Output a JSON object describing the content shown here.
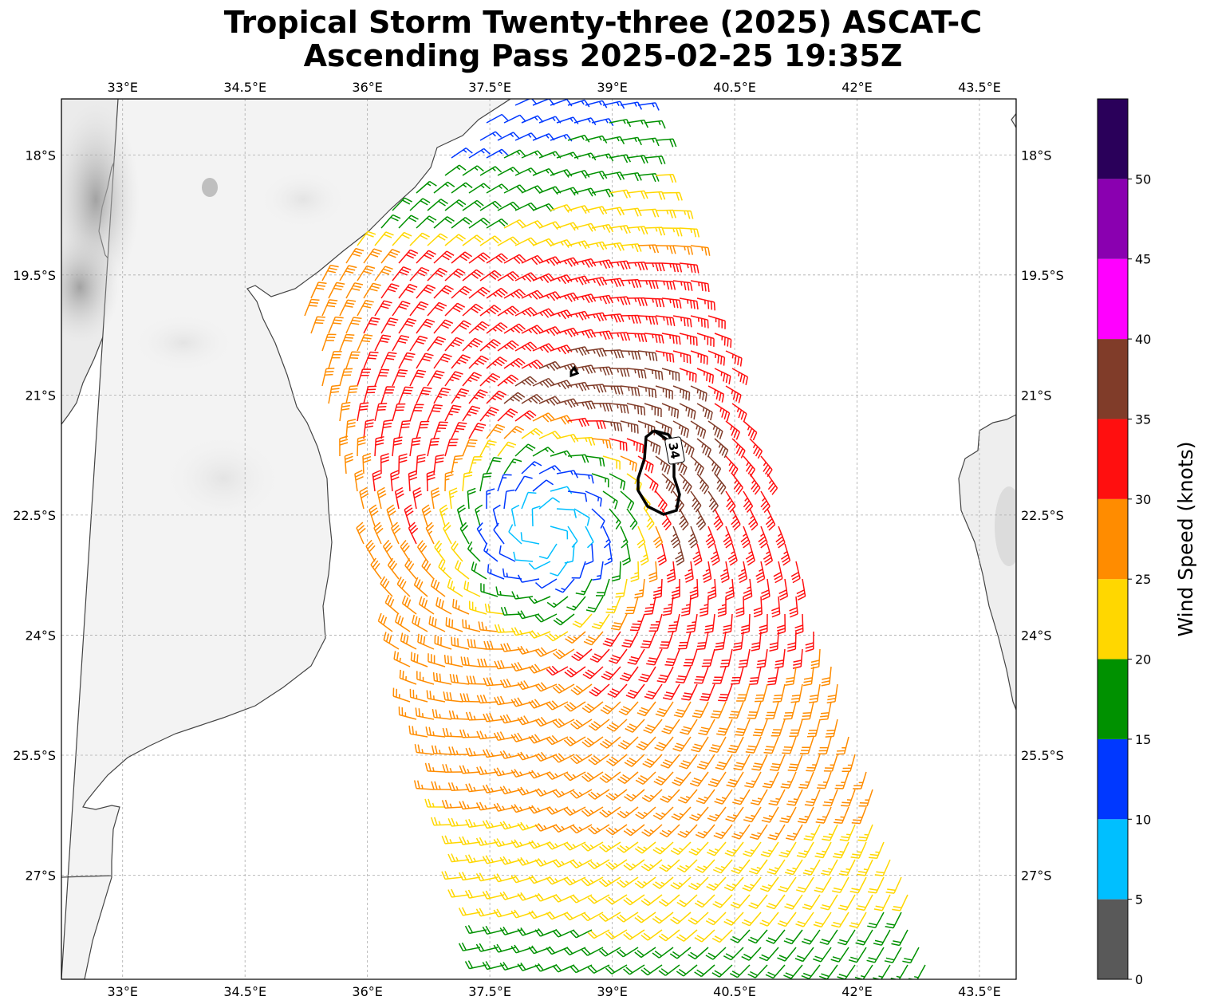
{
  "title_line1": "Tropical Storm Twenty-three (2025) ASCAT-C",
  "title_line2": "Ascending Pass 2025-02-25 19:35Z",
  "map": {
    "lon_range": [
      32.25,
      43.95
    ],
    "lat_range": [
      -28.3,
      -17.3
    ],
    "lon_ticks": [
      "33°E",
      "34.5°E",
      "36°E",
      "37.5°E",
      "39°E",
      "40.5°E",
      "42°E",
      "43.5°E"
    ],
    "lon_tick_values": [
      33,
      34.5,
      36,
      37.5,
      39,
      40.5,
      42,
      43.5
    ],
    "lat_ticks": [
      "18°S",
      "19.5°S",
      "21°S",
      "22.5°S",
      "24°S",
      "25.5°S",
      "27°S"
    ],
    "lat_tick_values": [
      -18,
      -19.5,
      -21,
      -22.5,
      -24,
      -25.5,
      -27
    ],
    "storm_center": {
      "lon": 38.2,
      "lat": -22.7
    },
    "contour_label": "34",
    "gridlines": true
  },
  "colorbar": {
    "label": "Wind Speed (knots)",
    "ticks": [
      "0",
      "5",
      "10",
      "15",
      "20",
      "25",
      "30",
      "35",
      "40",
      "45",
      "50"
    ],
    "bins": [
      {
        "min": 0,
        "max": 5,
        "color": "#595959"
      },
      {
        "min": 5,
        "max": 10,
        "color": "#00bfff"
      },
      {
        "min": 10,
        "max": 15,
        "color": "#0038ff"
      },
      {
        "min": 15,
        "max": 20,
        "color": "#009100"
      },
      {
        "min": 20,
        "max": 25,
        "color": "#ffd700"
      },
      {
        "min": 25,
        "max": 30,
        "color": "#ff8c00"
      },
      {
        "min": 30,
        "max": 35,
        "color": "#ff0f0f"
      },
      {
        "min": 35,
        "max": 40,
        "color": "#803c29"
      },
      {
        "min": 40,
        "max": 45,
        "color": "#ff00ff"
      },
      {
        "min": 45,
        "max": 50,
        "color": "#8a00b0"
      },
      {
        "min": 50,
        "max": 55,
        "color": "#2a005a"
      }
    ]
  }
}
